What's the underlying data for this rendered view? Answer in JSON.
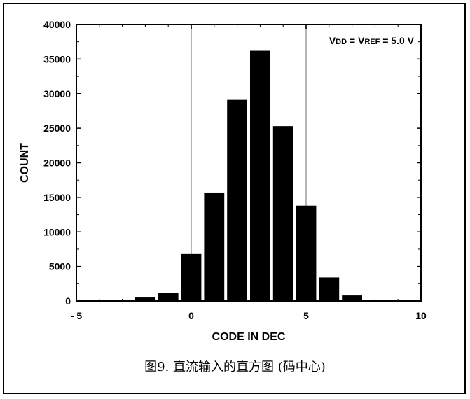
{
  "caption": "图9. 直流输入的直方图 (码中心)",
  "chart_data": {
    "type": "bar",
    "title": "",
    "xlabel": "CODE IN DEC",
    "ylabel": "COUNT",
    "xlim": [
      -5,
      10
    ],
    "ylim": [
      0,
      40000
    ],
    "x_ticks": [
      -5,
      0,
      5,
      10
    ],
    "x_tick_labels": [
      "- 5",
      "0",
      "5",
      "10"
    ],
    "y_ticks": [
      0,
      5000,
      10000,
      15000,
      20000,
      25000,
      30000,
      35000,
      40000
    ],
    "grid": true,
    "bar_color": "#000000",
    "annotation": {
      "parts": [
        {
          "text": "V",
          "sub": "DD"
        },
        {
          "text": " = V",
          "sub": "REF"
        },
        {
          "text": " = 5.0 V",
          "sub": ""
        }
      ]
    },
    "categories": [
      -4,
      -3,
      -2,
      -1,
      0,
      1,
      2,
      3,
      4,
      5,
      6,
      7,
      8,
      9
    ],
    "values": [
      50,
      150,
      500,
      1200,
      6800,
      15700,
      29100,
      36200,
      25300,
      13800,
      3400,
      800,
      150,
      50
    ]
  }
}
